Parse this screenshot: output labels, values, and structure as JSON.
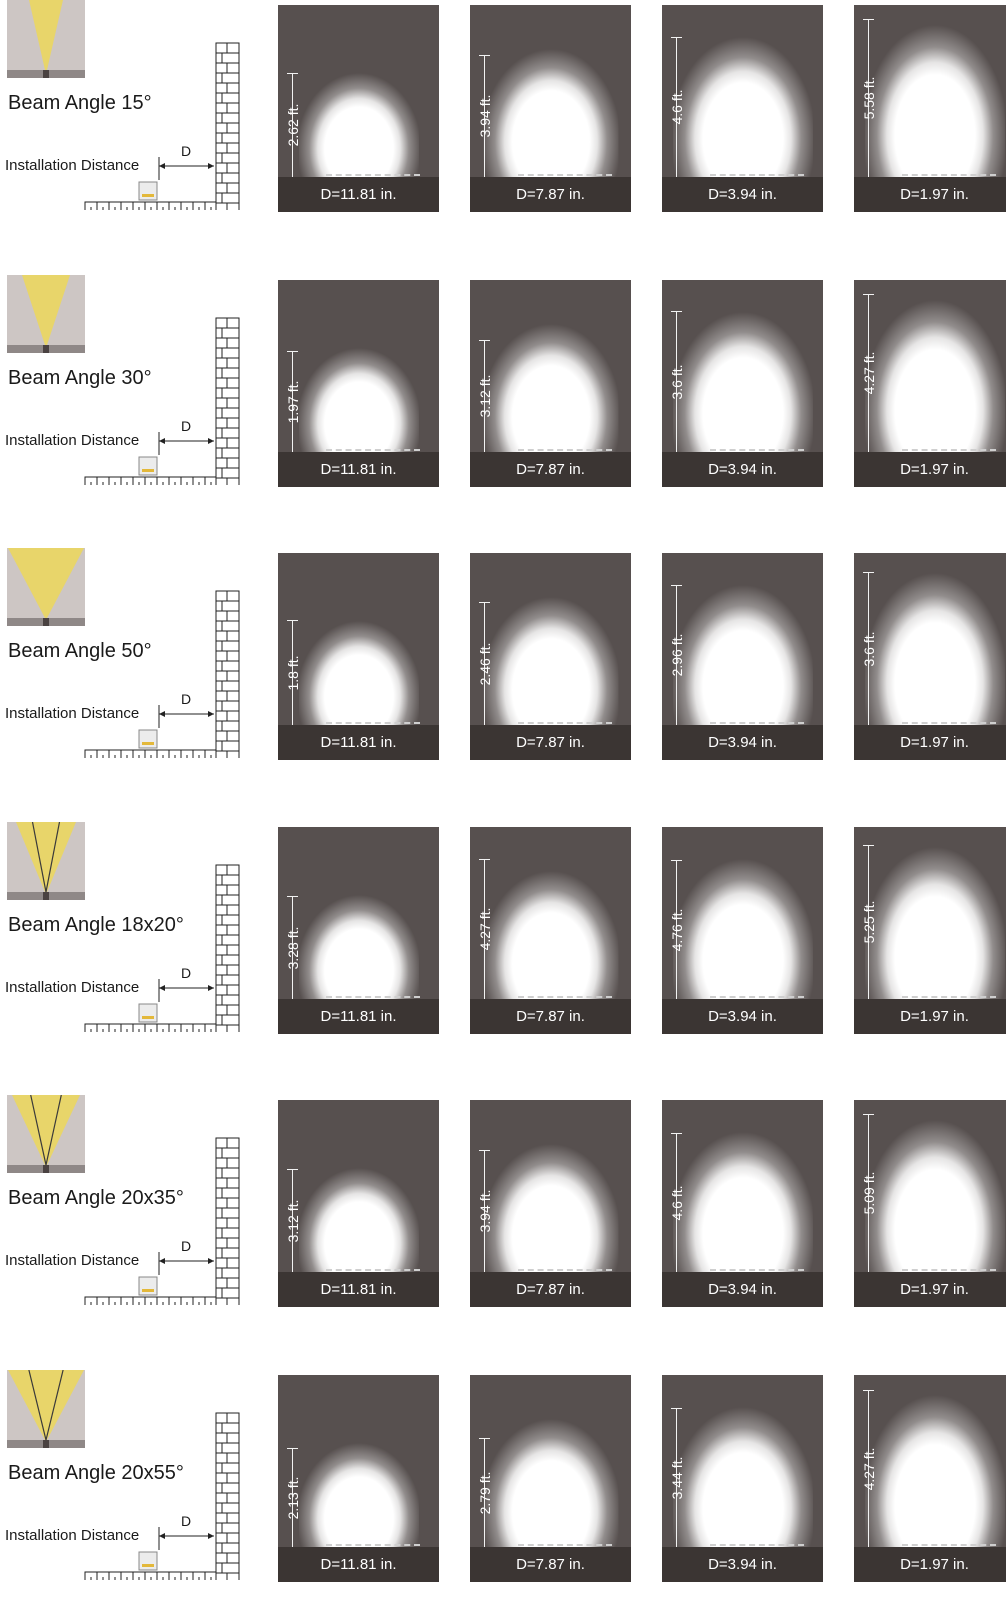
{
  "installation_label": "Installation Distance",
  "d_label": "D",
  "rows": [
    {
      "title": "Beam Angle 15°",
      "beam_type": "single",
      "panels": [
        {
          "distance": "D=11.81 in.",
          "height": "2.62 ft."
        },
        {
          "distance": "D=7.87 in.",
          "height": "3.94 ft."
        },
        {
          "distance": "D=3.94 in.",
          "height": "4.6 ft."
        },
        {
          "distance": "D=1.97 in.",
          "height": "5.58 ft."
        }
      ]
    },
    {
      "title": "Beam Angle 30°",
      "beam_type": "single",
      "panels": [
        {
          "distance": "D=11.81 in.",
          "height": "1.97 ft."
        },
        {
          "distance": "D=7.87 in.",
          "height": "3.12 ft."
        },
        {
          "distance": "D=3.94 in.",
          "height": "3.6 ft."
        },
        {
          "distance": "D=1.97 in.",
          "height": "4.27 ft."
        }
      ]
    },
    {
      "title": "Beam Angle 50°",
      "beam_type": "single",
      "panels": [
        {
          "distance": "D=11.81 in.",
          "height": "1.8 ft."
        },
        {
          "distance": "D=7.87 in.",
          "height": "2.46 ft."
        },
        {
          "distance": "D=3.94 in.",
          "height": "2.96 ft."
        },
        {
          "distance": "D=1.97 in.",
          "height": "3.6 ft."
        }
      ]
    },
    {
      "title": "Beam Angle 18x20°",
      "beam_type": "split",
      "panels": [
        {
          "distance": "D=11.81 in.",
          "height": "3.28 ft."
        },
        {
          "distance": "D=7.87 in.",
          "height": "4.27 ft."
        },
        {
          "distance": "D=3.94 in.",
          "height": "4.76 ft."
        },
        {
          "distance": "D=1.97 in.",
          "height": "5.25 ft."
        }
      ]
    },
    {
      "title": "Beam Angle 20x35°",
      "beam_type": "split",
      "panels": [
        {
          "distance": "D=11.81 in.",
          "height": "3.12 ft."
        },
        {
          "distance": "D=7.87 in.",
          "height": "3.94 ft."
        },
        {
          "distance": "D=3.94 in.",
          "height": "4.6 ft."
        },
        {
          "distance": "D=1.97 in.",
          "height": "5.09 ft."
        }
      ]
    },
    {
      "title": "Beam Angle 20x55°",
      "beam_type": "split",
      "panels": [
        {
          "distance": "D=11.81 in.",
          "height": "2.13 ft."
        },
        {
          "distance": "D=7.87 in.",
          "height": "2.79 ft."
        },
        {
          "distance": "D=3.94 in.",
          "height": "3.44 ft."
        },
        {
          "distance": "D=1.97 in.",
          "height": "4.27 ft."
        }
      ]
    }
  ],
  "colors": {
    "panel_bg": "#57504f",
    "panel_floor": "#3b3533",
    "beam_yellow": "#e8d56a",
    "thumb_bg": "#cdc6c4"
  }
}
